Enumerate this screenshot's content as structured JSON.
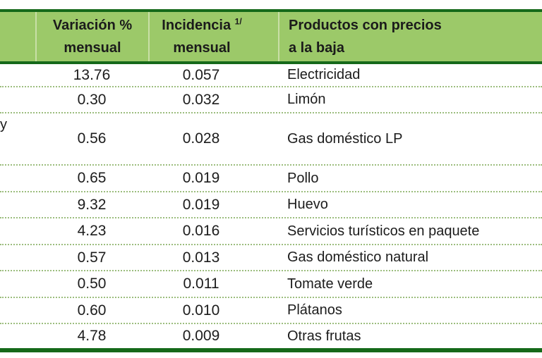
{
  "table": {
    "header": {
      "variacion": {
        "line1": "Variación %",
        "line2": "mensual"
      },
      "incidencia": {
        "line1": "Incidencia",
        "sup": "1/",
        "line2": "mensual"
      },
      "productos": {
        "line1": "Productos con precios",
        "line2": "a la baja"
      }
    },
    "cutoff_text": "y",
    "rows": [
      {
        "variacion": "13.76",
        "incidencia": "0.057",
        "producto": "Electricidad"
      },
      {
        "variacion": "0.30",
        "incidencia": "0.032",
        "producto": "Limón"
      },
      {
        "variacion": "0.56",
        "incidencia": "0.028",
        "producto": "Gas doméstico LP"
      },
      {
        "variacion": "0.65",
        "incidencia": "0.019",
        "producto": "Pollo"
      },
      {
        "variacion": "9.32",
        "incidencia": "0.019",
        "producto": "Huevo"
      },
      {
        "variacion": "4.23",
        "incidencia": "0.016",
        "producto": "Servicios turísticos en paquete"
      },
      {
        "variacion": "0.57",
        "incidencia": "0.013",
        "producto": "Gas doméstico natural"
      },
      {
        "variacion": "0.50",
        "incidencia": "0.011",
        "producto": "Tomate verde"
      },
      {
        "variacion": "0.60",
        "incidencia": "0.010",
        "producto": "Plátanos"
      },
      {
        "variacion": "4.78",
        "incidencia": "0.009",
        "producto": "Otras frutas"
      }
    ]
  },
  "colors": {
    "header_green": "#9cc969",
    "border_dark_green": "#15691a",
    "dotted_line": "#9cbd7e",
    "text": "#1c1c1c"
  }
}
